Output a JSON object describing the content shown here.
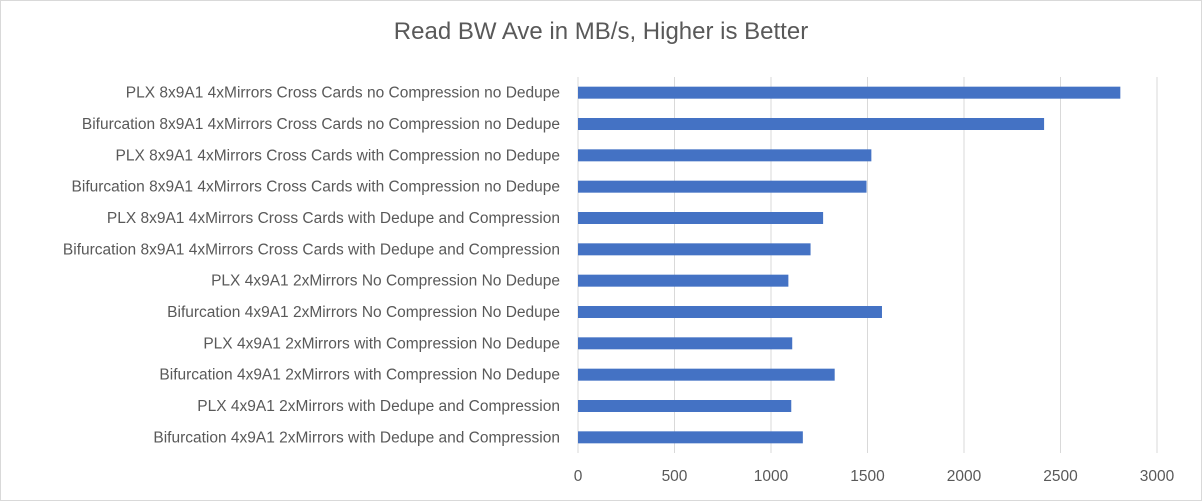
{
  "chart_data": {
    "type": "bar",
    "orientation": "horizontal",
    "title": "Read BW Ave in MB/s, Higher is Better",
    "xlabel": "",
    "ylabel": "",
    "xlim": [
      0,
      3000
    ],
    "xticks": [
      "0",
      "500",
      "1000",
      "1500",
      "2000",
      "2500",
      "3000"
    ],
    "grid": "vertical major gridlines",
    "legend": "none",
    "bar_color": "#4472c4",
    "categories": [
      "PLX 8x9A1 4xMirrors Cross Cards no Compression no Dedupe",
      "Bifurcation 8x9A1 4xMirrors Cross Cards no Compression no Dedupe",
      "PLX 8x9A1 4xMirrors Cross Cards with Compression no Dedupe",
      "Bifurcation 8x9A1 4xMirrors Cross Cards with Compression no Dedupe",
      "PLX 8x9A1 4xMirrors Cross Cards with Dedupe and Compression",
      "Bifurcation 8x9A1 4xMirrors Cross Cards with Dedupe and Compression",
      "PLX 4x9A1 2xMirrors No Compression No Dedupe",
      "Bifurcation 4x9A1 2xMirrors No Compression No Dedupe",
      "PLX 4x9A1 2xMirrors with Compression No Dedupe",
      "Bifurcation 4x9A1 2xMirrors with Compression No Dedupe",
      "PLX 4x9A1 2xMirrors with Dedupe and Compression",
      "Bifurcation 4x9A1 2xMirrors with Dedupe and Compression"
    ],
    "values": [
      2810,
      2415,
      1520,
      1495,
      1270,
      1205,
      1090,
      1575,
      1110,
      1330,
      1105,
      1165
    ]
  }
}
